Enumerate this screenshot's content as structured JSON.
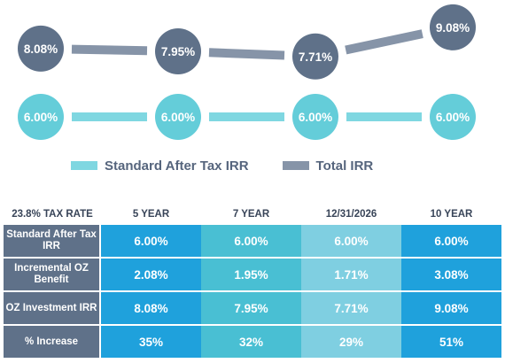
{
  "colors": {
    "standard": "#64cdd9",
    "total": "#5f7189",
    "total_line": "#8694a8",
    "standard_line": "#7fd7e1"
  },
  "chart_data": {
    "type": "line",
    "categories": [
      "5 YEAR",
      "7 YEAR",
      "12/31/2026",
      "10 YEAR"
    ],
    "series": [
      {
        "name": "Standard After Tax IRR",
        "values": [
          6.0,
          6.0,
          6.0,
          6.0
        ],
        "labels": [
          "6.00%",
          "6.00%",
          "6.00%",
          "6.00%"
        ]
      },
      {
        "name": "Total IRR",
        "values": [
          8.08,
          7.95,
          7.71,
          9.08
        ],
        "labels": [
          "8.08%",
          "7.95%",
          "7.71%",
          "9.08%"
        ]
      }
    ],
    "legend_position": "bottom",
    "grid": false
  },
  "table": {
    "corner_header": "23.8% TAX RATE",
    "columns": [
      "5 YEAR",
      "7 YEAR",
      "12/31/2026",
      "10 YEAR"
    ],
    "rows": [
      {
        "label": "Standard After Tax IRR",
        "cells": [
          "6.00%",
          "6.00%",
          "6.00%",
          "6.00%"
        ]
      },
      {
        "label": "Incremental OZ Benefit",
        "cells": [
          "2.08%",
          "1.95%",
          "1.71%",
          "3.08%"
        ]
      },
      {
        "label": "OZ Investment IRR",
        "cells": [
          "8.08%",
          "7.95%",
          "7.71%",
          "9.08%"
        ]
      },
      {
        "label": "% Increase",
        "cells": [
          "35%",
          "32%",
          "29%",
          "51%"
        ]
      }
    ]
  }
}
